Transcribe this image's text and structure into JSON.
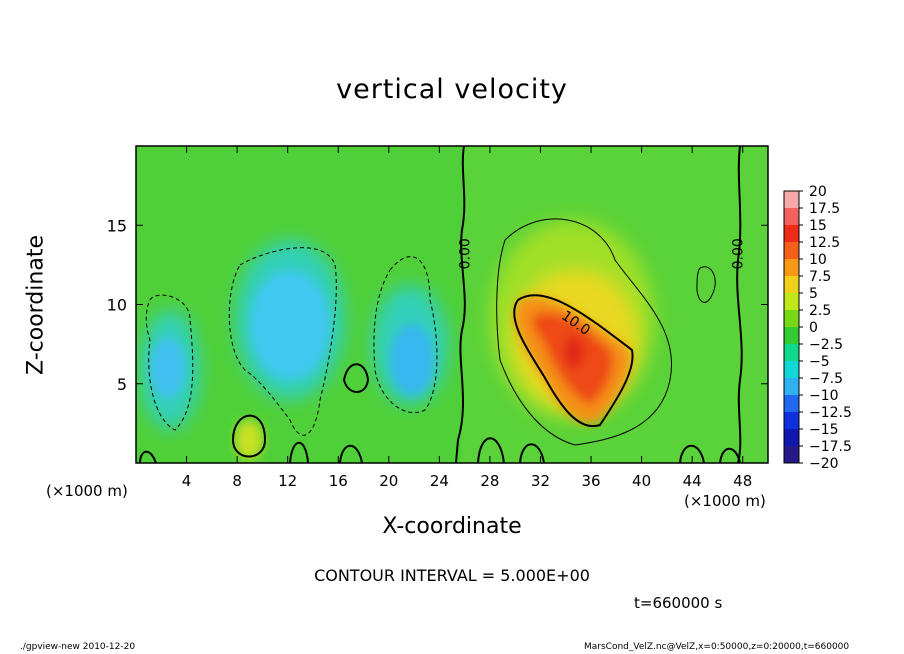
{
  "chart_data": {
    "type": "heatmap",
    "title": "vertical velocity",
    "xlabel": "X-coordinate",
    "ylabel": "Z-coordinate",
    "x_unit_label": "(×1000 m)",
    "xlim": [
      0,
      50
    ],
    "ylim": [
      0,
      20
    ],
    "x_ticks": [
      4,
      8,
      12,
      16,
      20,
      24,
      28,
      32,
      36,
      40,
      44,
      48
    ],
    "y_ticks": [
      5,
      10,
      15
    ],
    "contour_labels": [
      {
        "text": "0.00",
        "x": 26.4,
        "z": 13.2
      },
      {
        "text": "0.00",
        "x": 48.0,
        "z": 13.2
      },
      {
        "text": "10.0",
        "x": 34.6,
        "z": 8.6
      }
    ],
    "field_features": [
      {
        "name": "updraft-core",
        "x": 34.0,
        "z": 6.8,
        "value": 12.5
      },
      {
        "name": "downdraft-left",
        "x": 3.0,
        "z": 6.0,
        "value": -7.5
      },
      {
        "name": "downdraft-center",
        "x": 12.5,
        "z": 8.0,
        "value": -5.0
      },
      {
        "name": "downdraft-right",
        "x": 22.5,
        "z": 6.5,
        "value": -7.5
      },
      {
        "name": "warm-bubble",
        "x": 9.0,
        "z": 1.4,
        "value": 7.5
      }
    ],
    "colorbar": {
      "levels": [
        "20",
        "17.5",
        "15",
        "12.5",
        "10",
        "7.5",
        "5",
        "2.5",
        "0",
        "−2.5",
        "−5",
        "−7.5",
        "−10",
        "−12.5",
        "−15",
        "−17.5",
        "−20"
      ],
      "colors": [
        "#f8a8a8",
        "#f46060",
        "#ee2a18",
        "#f46018",
        "#f89818",
        "#f0d018",
        "#c0e818",
        "#78d818",
        "#30cc30",
        "#10d88c",
        "#10d8d8",
        "#30b0f0",
        "#2068f0",
        "#1030e0",
        "#1018b0",
        "#281888"
      ]
    }
  },
  "labels": {
    "title": "vertical velocity",
    "xlabel": "X-coordinate",
    "ylabel": "Z-coordinate",
    "x_unit_left": "(×1000 m)",
    "x_unit_right": "(×1000 m)",
    "interval": "CONTOUR INTERVAL = 5.000E+00",
    "time": "t=660000 s",
    "footer_left": "./gpview-new  2010-12-20",
    "footer_right": "MarsCond_VelZ.nc@VelZ,x=0:50000,z=0:20000,t=660000"
  }
}
